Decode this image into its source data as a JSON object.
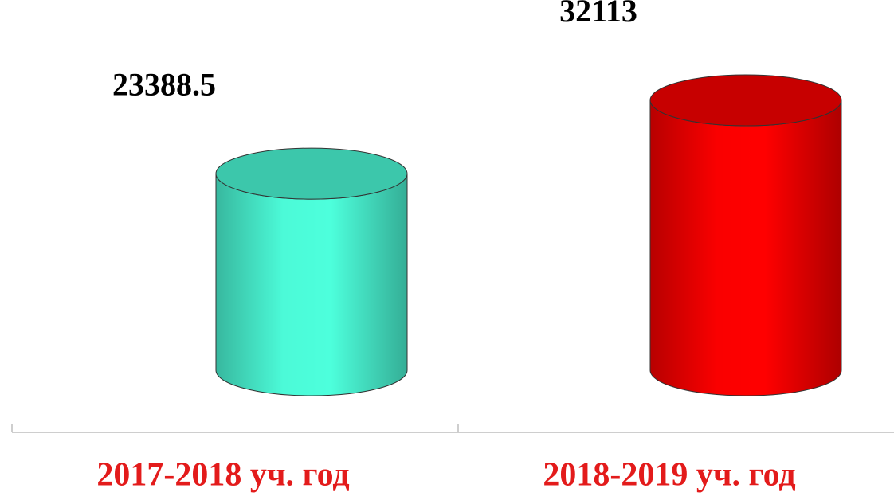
{
  "chart_data": {
    "type": "bar",
    "categories": [
      "2017-2018 уч. год",
      "2018-2019 уч. год"
    ],
    "values": [
      23388.5,
      32113
    ],
    "colors": [
      "#4dffdc",
      "#ff0000"
    ]
  }
}
